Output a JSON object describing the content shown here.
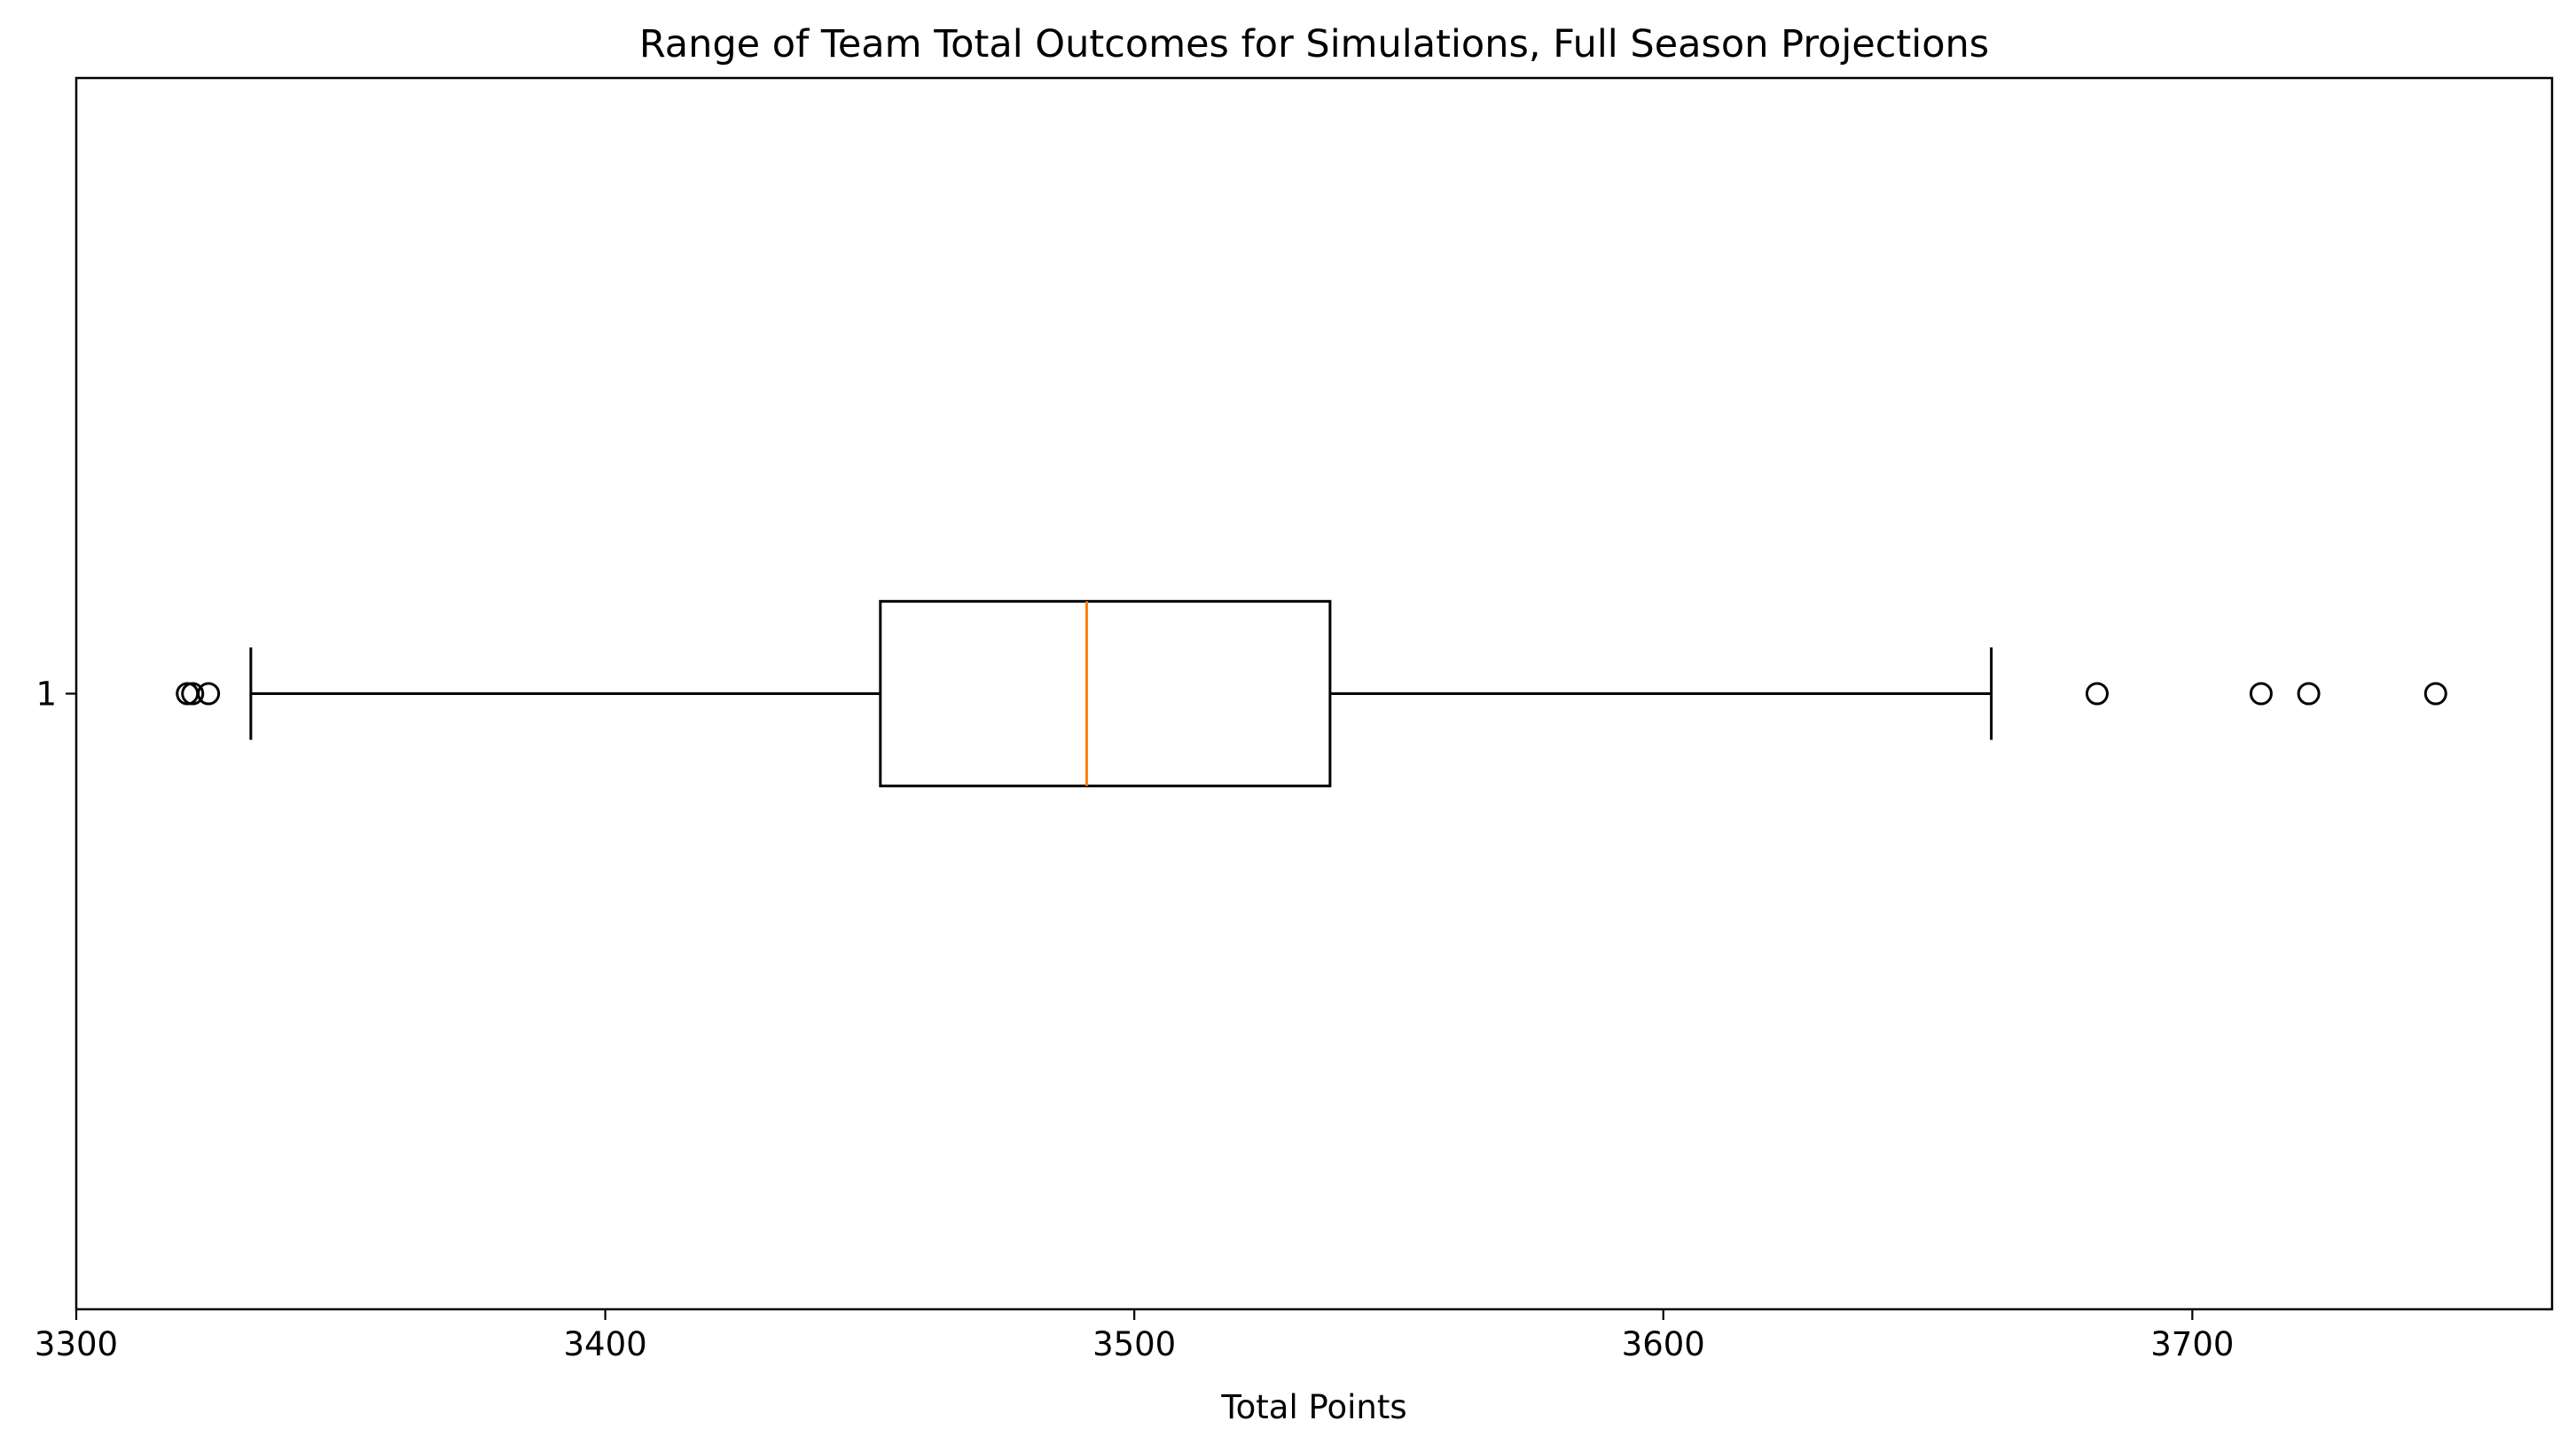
{
  "chart_data": {
    "type": "boxplot",
    "orientation": "horizontal",
    "title": "Range of Team Total Outcomes for Simulations, Full Season Projections",
    "xlabel": "Total Points",
    "ylabel": "",
    "xlim": [
      3300,
      3768
    ],
    "ylim": [
      0.5,
      1.5
    ],
    "x_ticks": [
      3300,
      3400,
      3500,
      3600,
      3700
    ],
    "x_tick_labels": [
      "3300",
      "3400",
      "3500",
      "3600",
      "3700"
    ],
    "y_ticks": [
      1
    ],
    "y_tick_labels": [
      "1"
    ],
    "grid": false,
    "legend": "none",
    "boxes": [
      {
        "category": "1",
        "position": 1,
        "whisker_low": 3333,
        "q1": 3452,
        "median": 3491,
        "q3": 3537,
        "whisker_high": 3662,
        "outliers": [
          3321,
          3322,
          3325,
          3682,
          3713,
          3722,
          3746
        ]
      }
    ],
    "colors": {
      "box": "#000000",
      "median": "#ff7f0e",
      "whiskers": "#000000",
      "outliers": "#000000"
    }
  }
}
